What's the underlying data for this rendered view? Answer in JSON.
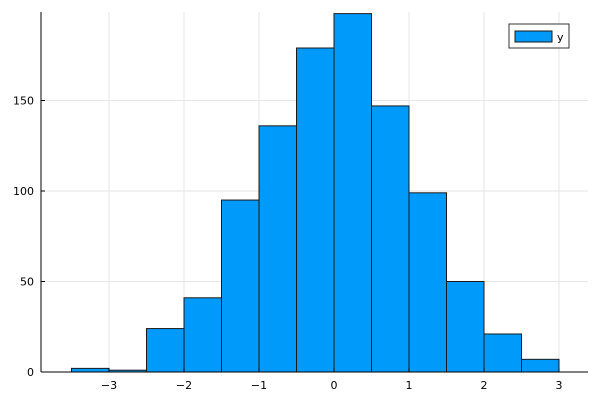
{
  "chart_data": {
    "type": "bar",
    "subtype": "histogram",
    "title": "",
    "xlabel": "",
    "ylabel": "",
    "bin_edges": [
      -3.5,
      -3.0,
      -2.5,
      -2.0,
      -1.5,
      -1.0,
      -0.5,
      0.0,
      0.5,
      1.0,
      1.5,
      2.0,
      2.5,
      3.0
    ],
    "categories": [
      "-3.5 to -3.0",
      "-3.0 to -2.5",
      "-2.5 to -2.0",
      "-2.0 to -1.5",
      "-1.5 to -1.0",
      "-1.0 to -0.5",
      "-0.5 to 0.0",
      "0.0 to 0.5",
      "0.5 to 1.0",
      "1.0 to 1.5",
      "1.5 to 2.0",
      "2.0 to 2.5",
      "2.5 to 3.0"
    ],
    "series": [
      {
        "name": "y",
        "color": "#009AFA",
        "values": [
          2,
          1,
          24,
          41,
          95,
          136,
          179,
          198,
          147,
          99,
          50,
          21,
          7
        ]
      }
    ],
    "xlim": [
      -3.7,
      3.4
    ],
    "ylim": [
      0,
      198
    ],
    "xticks": [
      "−3",
      "−2",
      "−1",
      "0",
      "1",
      "2",
      "3"
    ],
    "xtick_values": [
      -3,
      -2,
      -1,
      0,
      1,
      2,
      3
    ],
    "yticks": [
      "0",
      "50",
      "100",
      "150"
    ],
    "ytick_values": [
      0,
      50,
      100,
      150
    ],
    "grid": true,
    "legend": {
      "position": "top-right",
      "entries": [
        "y"
      ]
    }
  },
  "colors": {
    "bar_fill": "#009AFA",
    "bar_stroke": "#1a1a1a",
    "grid": "#e6e6e6",
    "axis": "#000000"
  }
}
